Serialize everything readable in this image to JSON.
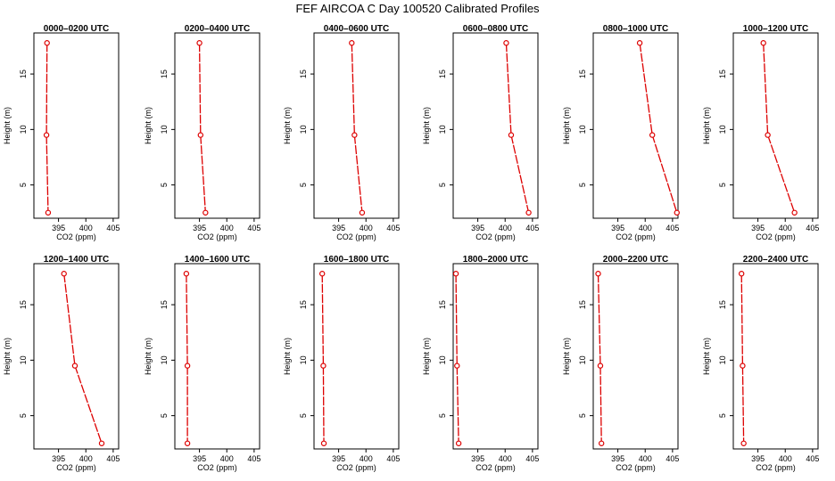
{
  "figure_title": "FEF AIRCOA C  Day 100520  Calibrated Profiles",
  "colors": {
    "series": "#dd0000",
    "axis": "#000000",
    "background": "#ffffff"
  },
  "chart_data": [
    {
      "type": "line",
      "title": "0000–0200 UTC",
      "xlabel": "CO2 (ppm)",
      "ylabel": "Height (m)",
      "x": [
        392.9,
        392.8,
        393.1
      ],
      "y": [
        17.8,
        9.5,
        2.5
      ],
      "xlim": [
        390.5,
        406
      ],
      "ylim": [
        2,
        18.7
      ],
      "xticks": [
        395,
        400,
        405
      ],
      "yticks": [
        5,
        10,
        15
      ],
      "grid": false
    },
    {
      "type": "line",
      "title": "0200–0400 UTC",
      "xlabel": "CO2 (ppm)",
      "ylabel": "Height (m)",
      "x": [
        395.0,
        395.2,
        396.1
      ],
      "y": [
        17.8,
        9.5,
        2.5
      ],
      "xlim": [
        390.5,
        406
      ],
      "ylim": [
        2,
        18.7
      ],
      "xticks": [
        395,
        400,
        405
      ],
      "yticks": [
        5,
        10,
        15
      ],
      "grid": false
    },
    {
      "type": "line",
      "title": "0400–0600 UTC",
      "xlabel": "CO2 (ppm)",
      "ylabel": "Height (m)",
      "x": [
        397.4,
        397.9,
        399.3
      ],
      "y": [
        17.8,
        9.5,
        2.5
      ],
      "xlim": [
        390.5,
        406
      ],
      "ylim": [
        2,
        18.7
      ],
      "xticks": [
        395,
        400,
        405
      ],
      "yticks": [
        5,
        10,
        15
      ],
      "grid": false
    },
    {
      "type": "line",
      "title": "0600–0800 UTC",
      "xlabel": "CO2 (ppm)",
      "ylabel": "Height (m)",
      "x": [
        400.2,
        401.1,
        404.3
      ],
      "y": [
        17.8,
        9.5,
        2.5
      ],
      "xlim": [
        390.5,
        406
      ],
      "ylim": [
        2,
        18.7
      ],
      "xticks": [
        395,
        400,
        405
      ],
      "yticks": [
        5,
        10,
        15
      ],
      "grid": false
    },
    {
      "type": "line",
      "title": "0800–1000 UTC",
      "xlabel": "CO2 (ppm)",
      "ylabel": "Height (m)",
      "x": [
        399.0,
        401.3,
        405.8
      ],
      "y": [
        17.8,
        9.5,
        2.5
      ],
      "xlim": [
        390.5,
        406
      ],
      "ylim": [
        2,
        18.7
      ],
      "xticks": [
        395,
        400,
        405
      ],
      "yticks": [
        5,
        10,
        15
      ],
      "grid": false
    },
    {
      "type": "line",
      "title": "1000–1200 UTC",
      "xlabel": "CO2 (ppm)",
      "ylabel": "Height (m)",
      "x": [
        396.0,
        396.8,
        401.7
      ],
      "y": [
        17.8,
        9.5,
        2.5
      ],
      "xlim": [
        390.5,
        406
      ],
      "ylim": [
        2,
        18.7
      ],
      "xticks": [
        395,
        400,
        405
      ],
      "yticks": [
        5,
        10,
        15
      ],
      "grid": false
    },
    {
      "type": "line",
      "title": "1200–1400 UTC",
      "xlabel": "CO2 (ppm)",
      "ylabel": "Height (m)",
      "x": [
        396.0,
        398.0,
        402.9
      ],
      "y": [
        17.8,
        9.5,
        2.5
      ],
      "xlim": [
        390.5,
        406
      ],
      "ylim": [
        2,
        18.7
      ],
      "xticks": [
        395,
        400,
        405
      ],
      "yticks": [
        5,
        10,
        15
      ],
      "grid": false
    },
    {
      "type": "line",
      "title": "1400–1600 UTC",
      "xlabel": "CO2 (ppm)",
      "ylabel": "Height (m)",
      "x": [
        392.6,
        392.8,
        392.8
      ],
      "y": [
        17.8,
        9.5,
        2.5
      ],
      "xlim": [
        390.5,
        406
      ],
      "ylim": [
        2,
        18.7
      ],
      "xticks": [
        395,
        400,
        405
      ],
      "yticks": [
        5,
        10,
        15
      ],
      "grid": false
    },
    {
      "type": "line",
      "title": "1600–1800 UTC",
      "xlabel": "CO2 (ppm)",
      "ylabel": "Height (m)",
      "x": [
        392.0,
        392.2,
        392.3
      ],
      "y": [
        17.8,
        9.5,
        2.5
      ],
      "xlim": [
        390.5,
        406
      ],
      "ylim": [
        2,
        18.7
      ],
      "xticks": [
        395,
        400,
        405
      ],
      "yticks": [
        5,
        10,
        15
      ],
      "grid": false
    },
    {
      "type": "line",
      "title": "1800–2000 UTC",
      "xlabel": "CO2 (ppm)",
      "ylabel": "Height (m)",
      "x": [
        391.0,
        391.2,
        391.5
      ],
      "y": [
        17.8,
        9.5,
        2.5
      ],
      "xlim": [
        390.5,
        406
      ],
      "ylim": [
        2,
        18.7
      ],
      "xticks": [
        395,
        400,
        405
      ],
      "yticks": [
        5,
        10,
        15
      ],
      "grid": false
    },
    {
      "type": "line",
      "title": "2000–2200 UTC",
      "xlabel": "CO2 (ppm)",
      "ylabel": "Height (m)",
      "x": [
        391.4,
        391.8,
        392.0
      ],
      "y": [
        17.8,
        9.5,
        2.5
      ],
      "xlim": [
        390.5,
        406
      ],
      "ylim": [
        2,
        18.7
      ],
      "xticks": [
        395,
        400,
        405
      ],
      "yticks": [
        5,
        10,
        15
      ],
      "grid": false
    },
    {
      "type": "line",
      "title": "2200–2400 UTC",
      "xlabel": "CO2 (ppm)",
      "ylabel": "Height (m)",
      "x": [
        392.0,
        392.2,
        392.4
      ],
      "y": [
        17.8,
        9.5,
        2.5
      ],
      "xlim": [
        390.5,
        406
      ],
      "ylim": [
        2,
        18.7
      ],
      "xticks": [
        395,
        400,
        405
      ],
      "yticks": [
        5,
        10,
        15
      ],
      "grid": false
    }
  ]
}
